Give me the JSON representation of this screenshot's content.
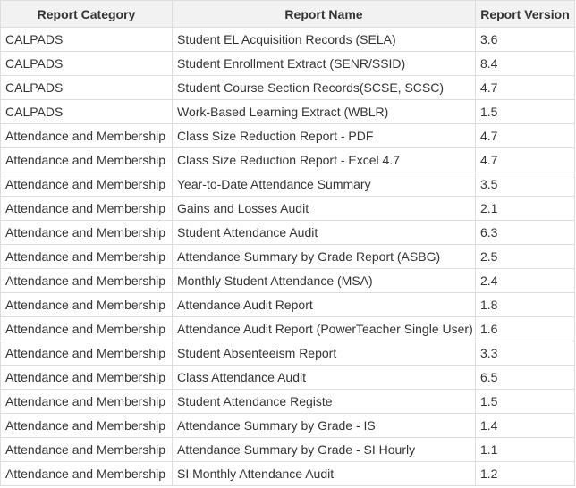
{
  "table": {
    "columns": [
      "Report Category",
      "Report Name",
      "Report Version"
    ],
    "rows": [
      [
        "CALPADS",
        "Student EL Acquisition Records (SELA)",
        "3.6"
      ],
      [
        "CALPADS",
        "Student Enrollment Extract (SENR/SSID)",
        "8.4"
      ],
      [
        "CALPADS",
        "Student Course Section Records(SCSE, SCSC)",
        "4.7"
      ],
      [
        "CALPADS",
        "Work-Based Learning Extract (WBLR)",
        "1.5"
      ],
      [
        "Attendance and Membership",
        "Class Size Reduction Report - PDF",
        "4.7"
      ],
      [
        "Attendance and Membership",
        "Class Size Reduction Report - Excel 4.7",
        "4.7"
      ],
      [
        "Attendance and Membership",
        "Year-to-Date Attendance Summary",
        "3.5"
      ],
      [
        "Attendance and Membership",
        "Gains and Losses Audit",
        "2.1"
      ],
      [
        "Attendance and Membership",
        "Student Attendance Audit",
        "6.3"
      ],
      [
        "Attendance and Membership",
        "Attendance Summary by Grade Report (ASBG)",
        "2.5"
      ],
      [
        "Attendance and Membership",
        "Monthly Student Attendance (MSA)",
        "2.4"
      ],
      [
        "Attendance and Membership",
        "Attendance Audit Report",
        "1.8"
      ],
      [
        "Attendance and Membership",
        "Attendance Audit Report (PowerTeacher Single User)",
        "1.6"
      ],
      [
        "Attendance and Membership",
        "Student Absenteeism Report",
        "3.3"
      ],
      [
        "Attendance and Membership",
        "Class Attendance Audit",
        "6.5"
      ],
      [
        "Attendance and Membership",
        "Student Attendance Registe",
        "1.5"
      ],
      [
        "Attendance and Membership",
        "Attendance Summary by Grade - IS",
        "1.4"
      ],
      [
        "Attendance and Membership",
        "Attendance Summary by Grade - SI Hourly",
        "1.1"
      ],
      [
        "Attendance and Membership",
        "SI Monthly Attendance Audit",
        "1.2"
      ]
    ]
  }
}
